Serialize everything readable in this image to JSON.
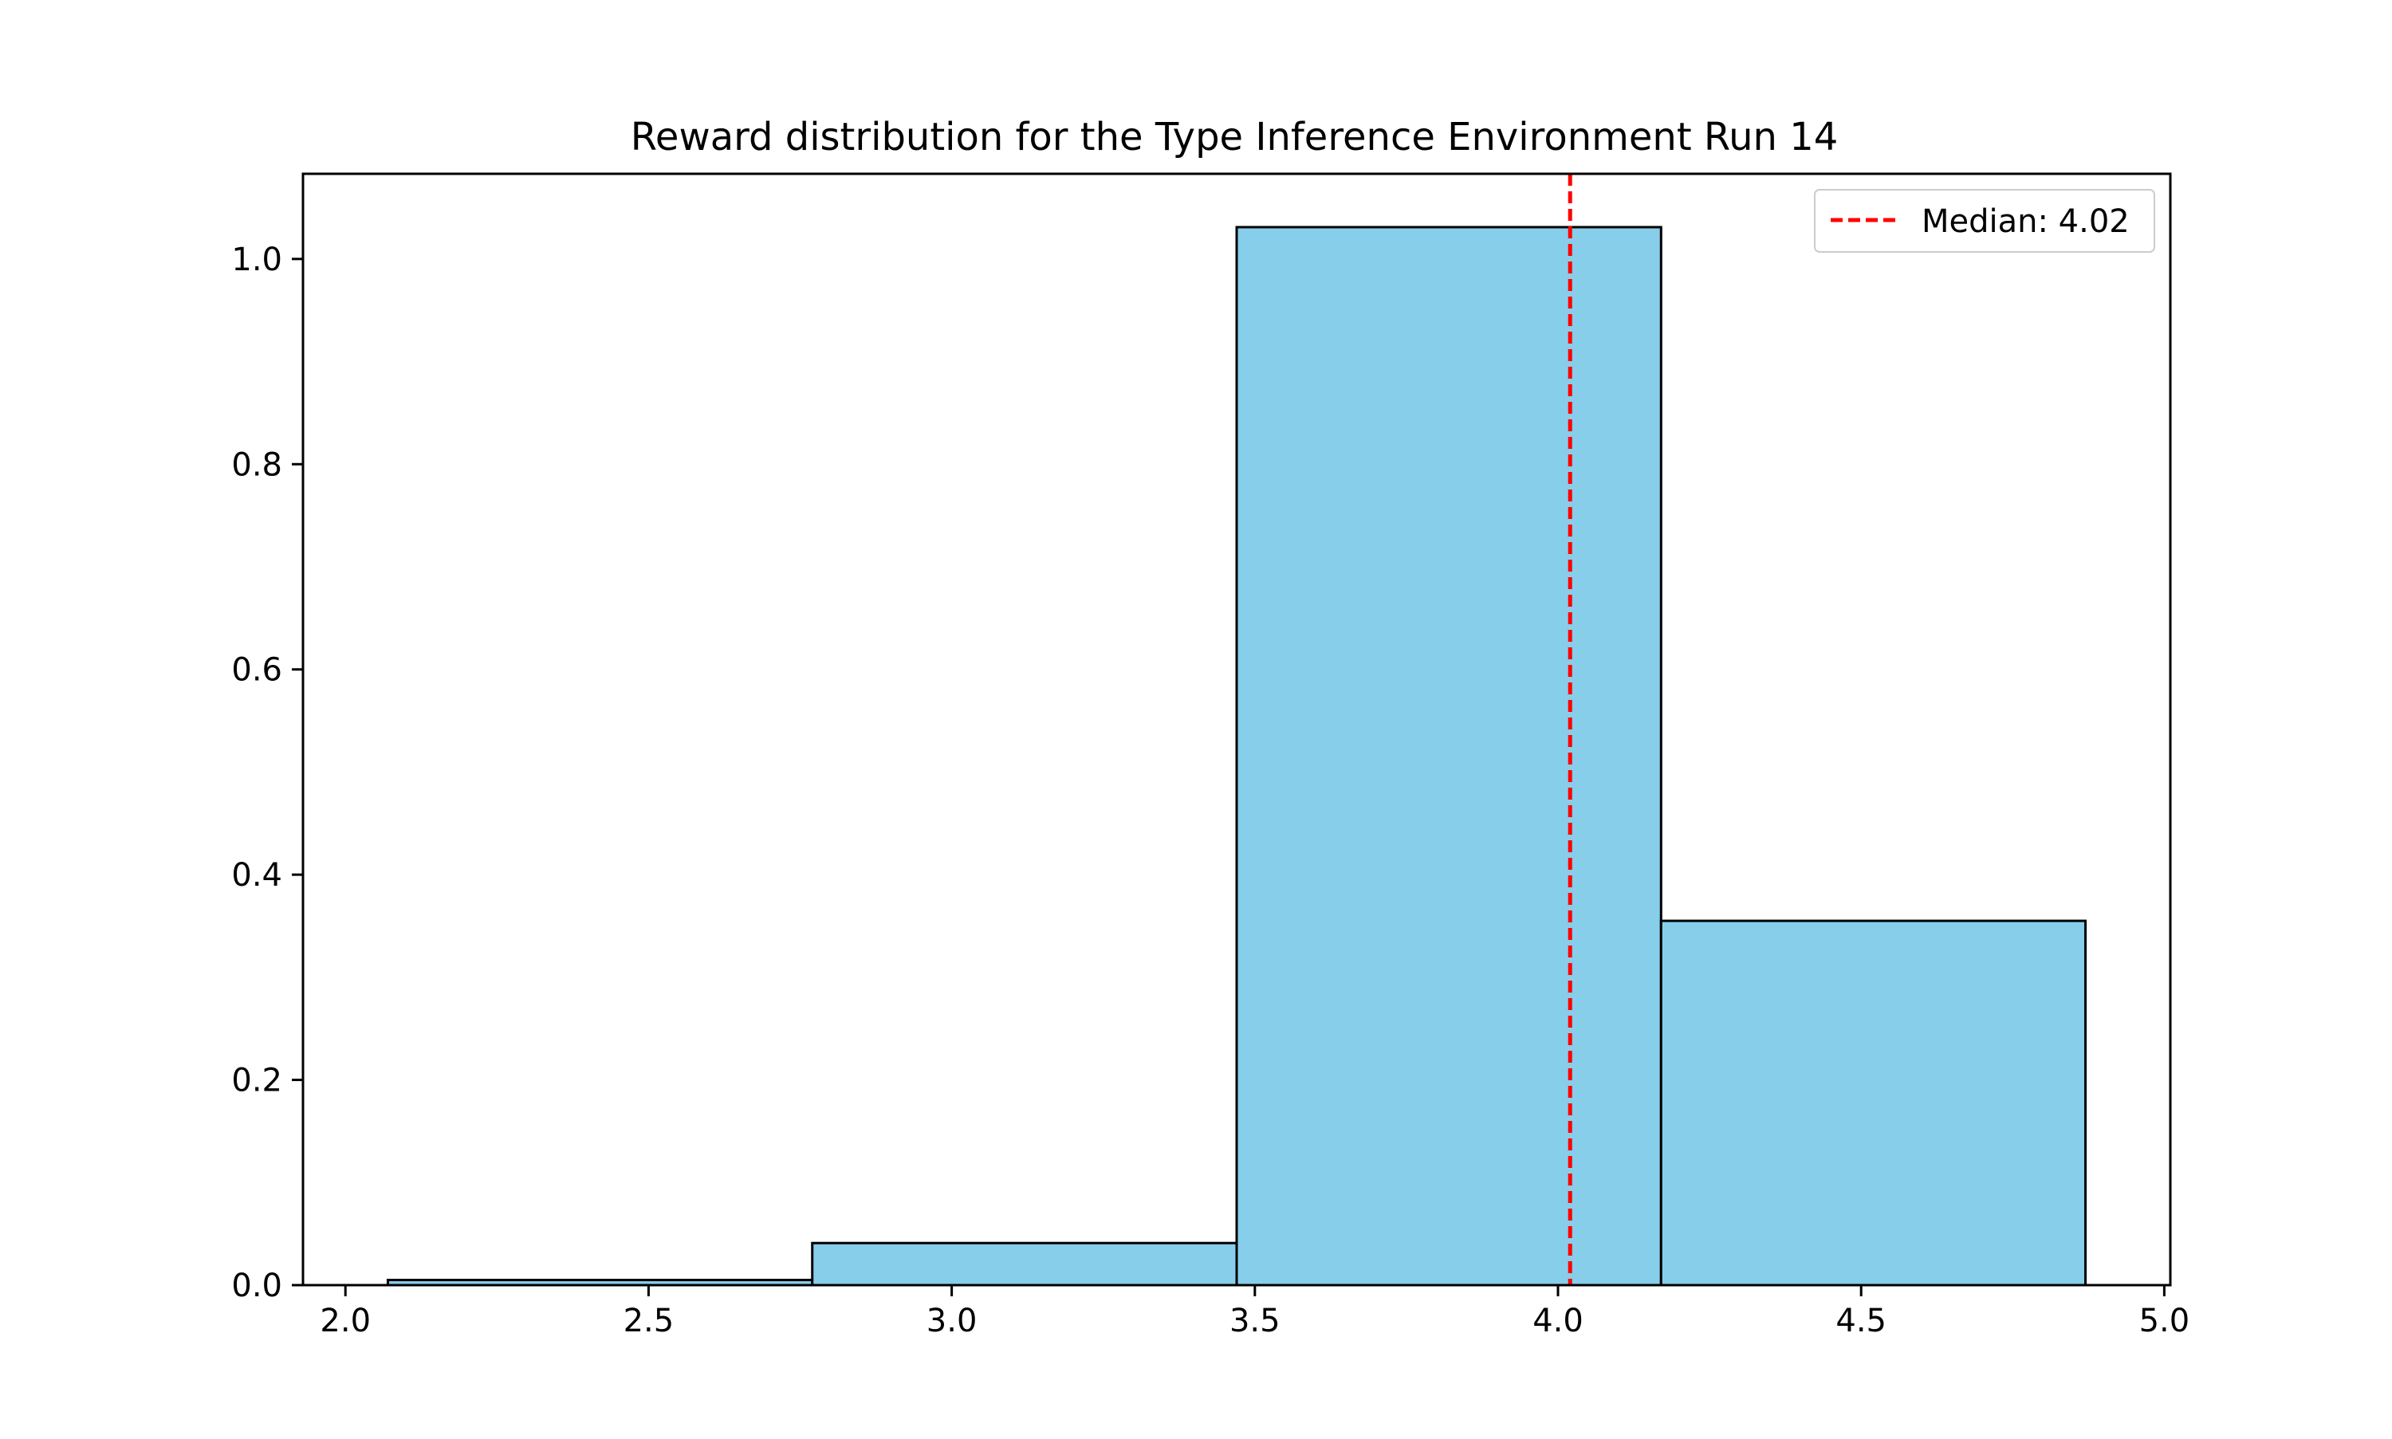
{
  "chart_data": {
    "type": "bar",
    "title": "Reward distribution for the Type Inference Environment Run 14",
    "xlabel": "",
    "ylabel": "",
    "bins": [
      {
        "start": 2.07,
        "end": 2.77,
        "value": 0.005
      },
      {
        "start": 2.77,
        "end": 3.47,
        "value": 0.041
      },
      {
        "start": 3.47,
        "end": 4.17,
        "value": 1.031
      },
      {
        "start": 4.17,
        "end": 4.87,
        "value": 0.355
      }
    ],
    "xlim": [
      1.93,
      5.01
    ],
    "ylim": [
      0.0,
      1.083
    ],
    "xticks": [
      {
        "value": 2.0,
        "label": "2.0"
      },
      {
        "value": 2.5,
        "label": "2.5"
      },
      {
        "value": 3.0,
        "label": "3.0"
      },
      {
        "value": 3.5,
        "label": "3.5"
      },
      {
        "value": 4.0,
        "label": "4.0"
      },
      {
        "value": 4.5,
        "label": "4.5"
      },
      {
        "value": 5.0,
        "label": "5.0"
      }
    ],
    "yticks": [
      {
        "value": 0.0,
        "label": "0.0"
      },
      {
        "value": 0.2,
        "label": "0.2"
      },
      {
        "value": 0.4,
        "label": "0.4"
      },
      {
        "value": 0.6,
        "label": "0.6"
      },
      {
        "value": 0.8,
        "label": "0.8"
      },
      {
        "value": 1.0,
        "label": "1.0"
      }
    ],
    "median": {
      "value": 4.02,
      "label": "Median: 4.02"
    },
    "legend_position": "top-right",
    "grid": false,
    "colors": {
      "bar_fill": "#87ceeb",
      "bar_edge": "#000000",
      "median_line": "#ff0000"
    }
  }
}
